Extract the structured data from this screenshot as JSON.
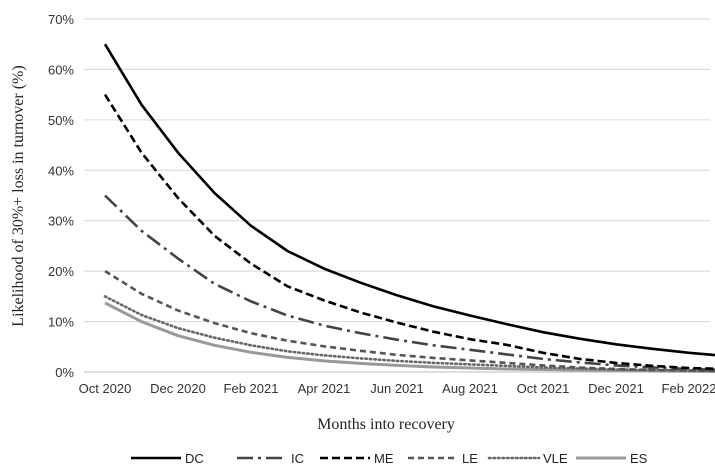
{
  "chart_data": {
    "type": "line",
    "x": [
      "Oct 2020",
      "Nov 2020",
      "Dec 2020",
      "Jan 2021",
      "Feb 2021",
      "Mar 2021",
      "Apr 2021",
      "May 2021",
      "Jun 2021",
      "Jul 2021",
      "Aug 2021",
      "Sep 2021",
      "Oct 2021",
      "Nov 2021",
      "Dec 2021",
      "Jan 2022",
      "Feb 2022",
      "Mar 2022"
    ],
    "x_tick_labels": [
      "Oct 2020",
      "Dec 2020",
      "Feb 2021",
      "Apr 2021",
      "Jun 2021",
      "Aug 2021",
      "Oct 2021",
      "Dec 2021",
      "Feb 2022"
    ],
    "y_tick_labels": [
      "0%",
      "10%",
      "20%",
      "30%",
      "40%",
      "50%",
      "60%",
      "70%"
    ],
    "ylim": [
      0,
      70
    ],
    "xlabel": "Months into recovery",
    "ylabel": "Likelihood of 30%+ loss in turnover (%)",
    "grid": "horizontal",
    "legend_position": "bottom",
    "series": [
      {
        "name": "DC",
        "color": "#000000",
        "style": "solid",
        "values": [
          65,
          53,
          43.5,
          35.5,
          29,
          24,
          20.5,
          17.7,
          15.2,
          13,
          11.2,
          9.5,
          7.9,
          6.6,
          5.5,
          4.6,
          3.8,
          3.2
        ]
      },
      {
        "name": "IC",
        "color": "#444444",
        "style": "dashdot",
        "values": [
          35,
          28,
          22.5,
          17.5,
          14,
          11.2,
          9.2,
          7.7,
          6.4,
          5.3,
          4.4,
          3.5,
          2.6,
          1.9,
          1.3,
          0.9,
          0.6,
          0.4
        ]
      },
      {
        "name": "ME",
        "color": "#000000",
        "style": "dashed",
        "values": [
          55,
          43.5,
          34.5,
          27,
          21.5,
          17,
          14.2,
          11.8,
          9.8,
          8,
          6.5,
          5.4,
          3.8,
          2.6,
          1.8,
          1.2,
          0.8,
          0.6
        ]
      },
      {
        "name": "LE",
        "color": "#555555",
        "style": "shortdash",
        "values": [
          20,
          15.5,
          12.2,
          9.7,
          7.7,
          6.2,
          5.1,
          4.2,
          3.4,
          2.8,
          2.3,
          1.8,
          1.3,
          0.9,
          0.6,
          0.4,
          0.3,
          0.2
        ]
      },
      {
        "name": "VLE",
        "color": "#666666",
        "style": "dotted",
        "values": [
          15,
          11.3,
          8.7,
          6.8,
          5.3,
          4.1,
          3.3,
          2.7,
          2.2,
          1.8,
          1.5,
          1.2,
          0.9,
          0.7,
          0.5,
          0.4,
          0.3,
          0.2
        ]
      },
      {
        "name": "ES",
        "color": "#999999",
        "style": "solid",
        "values": [
          13.7,
          10,
          7.2,
          5.3,
          3.9,
          2.9,
          2.2,
          1.7,
          1.3,
          1,
          0.8,
          0.6,
          0.5,
          0.4,
          0.3,
          0.2,
          0.15,
          0.1
        ]
      }
    ]
  }
}
